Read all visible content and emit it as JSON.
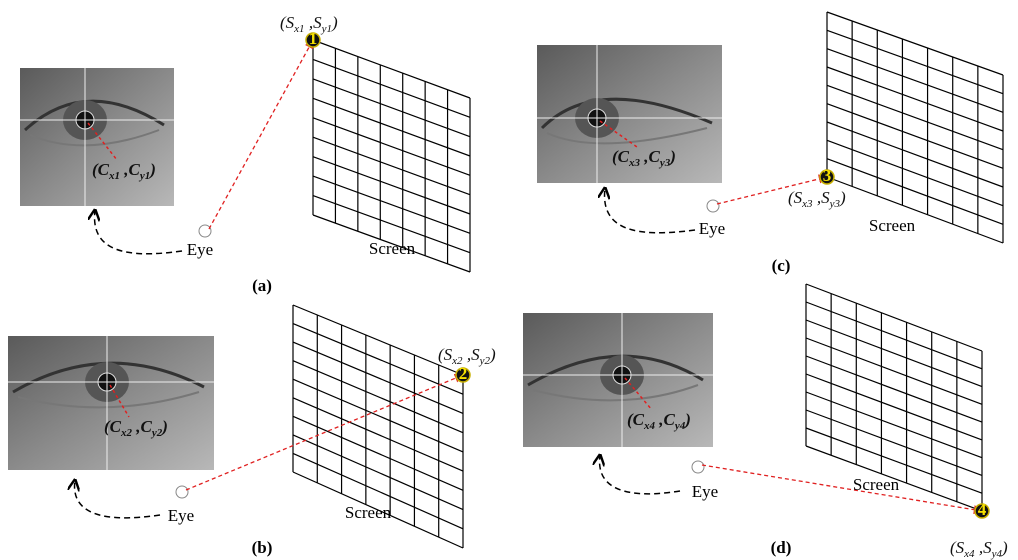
{
  "panels": [
    {
      "label": "(a)",
      "eye": "Eye",
      "screen": "Screen",
      "point": "1",
      "pupil_label": [
        "(C",
        "x1",
        " ,C",
        "y1",
        ")"
      ],
      "screen_label": [
        "(S",
        "x1",
        " ,S",
        "y1",
        ")"
      ]
    },
    {
      "label": "(b)",
      "eye": "Eye",
      "screen": "Screen",
      "point": "2",
      "pupil_label": [
        "(C",
        "x2",
        " ,C",
        "y2",
        ")"
      ],
      "screen_label": [
        "(S",
        "x2",
        " ,S",
        "y2",
        ")"
      ]
    },
    {
      "label": "(c)",
      "eye": "Eye",
      "screen": "Screen",
      "point": "3",
      "pupil_label": [
        "(C",
        "x3",
        " ,C",
        "y3",
        ")"
      ],
      "screen_label": [
        "(S",
        "x3",
        " ,S",
        "y3",
        ")"
      ]
    },
    {
      "label": "(d)",
      "eye": "Eye",
      "screen": "Screen",
      "point": "4",
      "pupil_label": [
        "(C",
        "x4",
        " ,C",
        "y4",
        ")"
      ],
      "screen_label": [
        "(S",
        "x4",
        " ,S",
        "y4",
        ")"
      ]
    }
  ]
}
